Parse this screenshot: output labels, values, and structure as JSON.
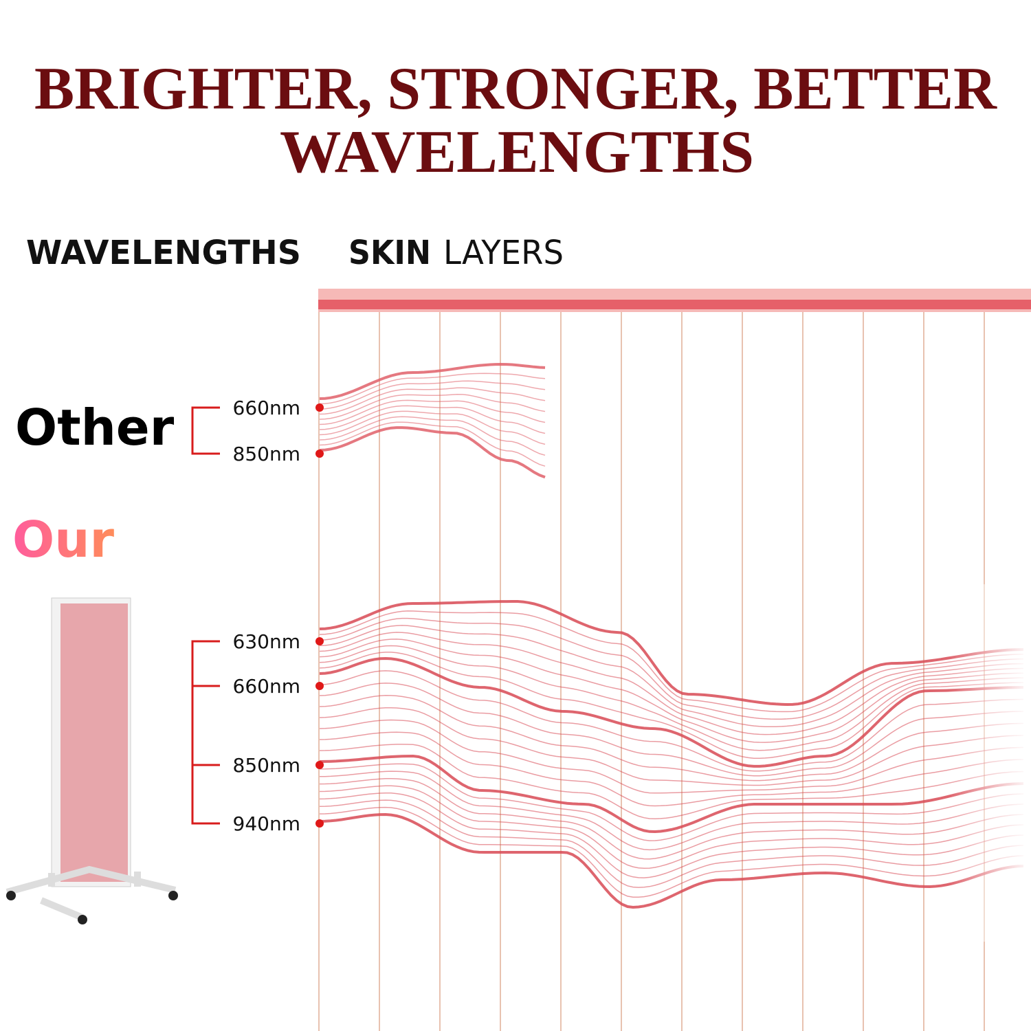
{
  "title": {
    "lines": [
      "BRIGHTER, STRONGER, BETTER",
      "WAVELENGTHS"
    ]
  },
  "headings": {
    "wavelengths": "WAVELENGTHS",
    "skin": "SKIN",
    "layers": "LAYERS"
  },
  "groups": [
    {
      "label": "Other",
      "wavelengths": [
        "660nm",
        "850nm"
      ]
    },
    {
      "label": "Our",
      "wavelengths": [
        "630nm",
        "660nm",
        "850nm",
        "940nm"
      ]
    }
  ]
}
